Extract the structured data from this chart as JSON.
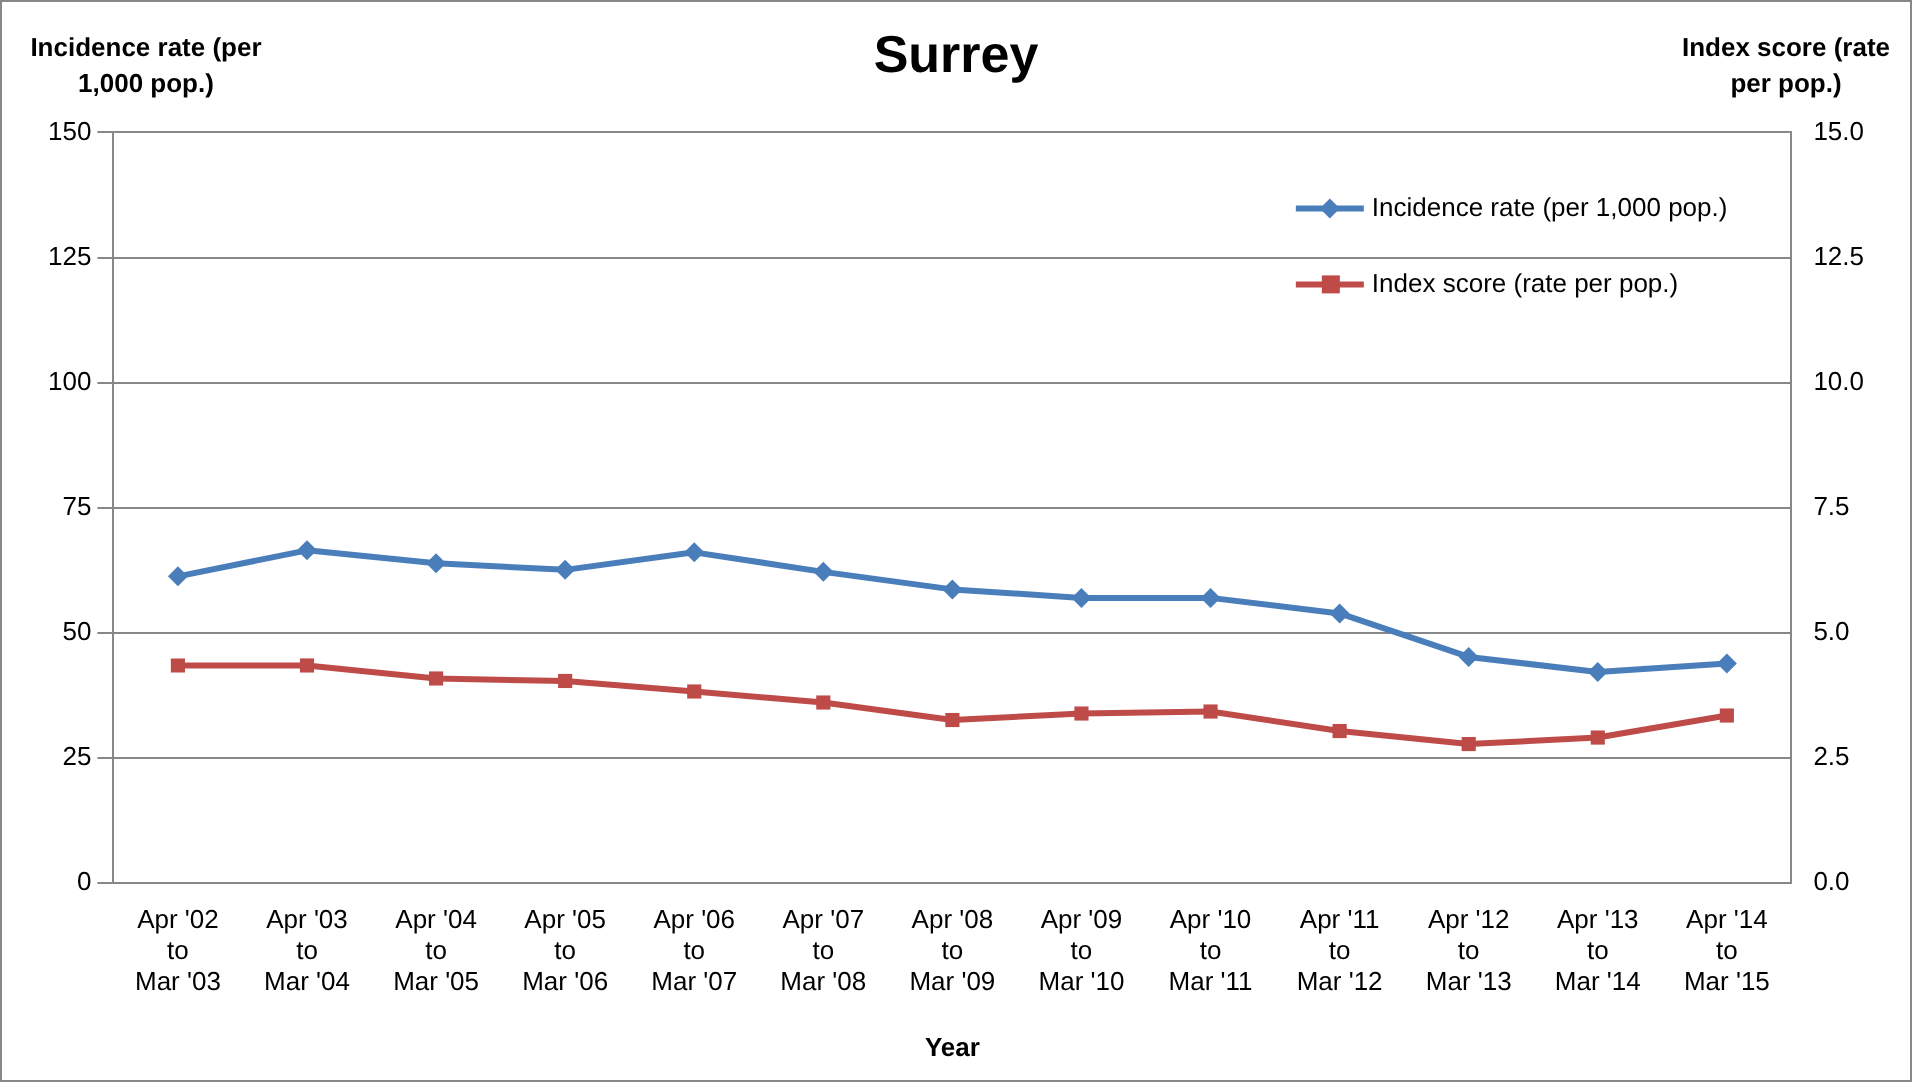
{
  "chart_data": {
    "type": "line",
    "title": "Surrey",
    "xlabel": "Year",
    "ylabel": "Incidence rate (per 1,000 pop.)",
    "y2label": "Index score (rate per pop.)",
    "categories": [
      "Apr '02\nto\nMar '03",
      "Apr '03\nto\nMar '04",
      "Apr '04\nto\nMar '05",
      "Apr '05\nto\nMar '06",
      "Apr '06\nto\nMar '07",
      "Apr '07\nto\nMar '08",
      "Apr '08\nto\nMar '09",
      "Apr '09\nto\nMar '10",
      "Apr '10\nto\nMar '11",
      "Apr '11\nto\nMar '12",
      "Apr '12\nto\nMar '13",
      "Apr '13\nto\nMar '14",
      "Apr '14\nto\nMar '15"
    ],
    "series": [
      {
        "name": "Incidence rate (per 1,000 pop.)",
        "color": "#4a7ebb",
        "marker": "diamond",
        "values": [
          61.3,
          66.5,
          63.9,
          62.6,
          66.1,
          62.2,
          58.7,
          57,
          57,
          53.9,
          45.2,
          42.2,
          43.9
        ]
      },
      {
        "name": "Index score (rate per pop.)",
        "color": "#be4b48",
        "marker": "square",
        "axis": "y2",
        "values": [
          4.35,
          4.35,
          4.09,
          4.04,
          3.83,
          3.61,
          3.26,
          3.39,
          3.43,
          3.04,
          2.78,
          2.91,
          3.35
        ]
      }
    ],
    "ylim": [
      0,
      150
    ],
    "yticks": [
      0,
      25,
      50,
      75,
      100,
      125,
      150
    ],
    "y2lim": [
      0,
      15
    ],
    "y2ticks": [
      {
        "value": 0,
        "label": "0.0"
      },
      {
        "value": 2.5,
        "label": "2.5"
      },
      {
        "value": 5,
        "label": "5.0"
      },
      {
        "value": 7.5,
        "label": "7.5"
      },
      {
        "value": 10,
        "label": "10.0"
      },
      {
        "value": 12.5,
        "label": "12.5"
      },
      {
        "value": 15,
        "label": "15.0"
      }
    ],
    "grid": "y",
    "legend": "top right",
    "line_style": "solid"
  }
}
